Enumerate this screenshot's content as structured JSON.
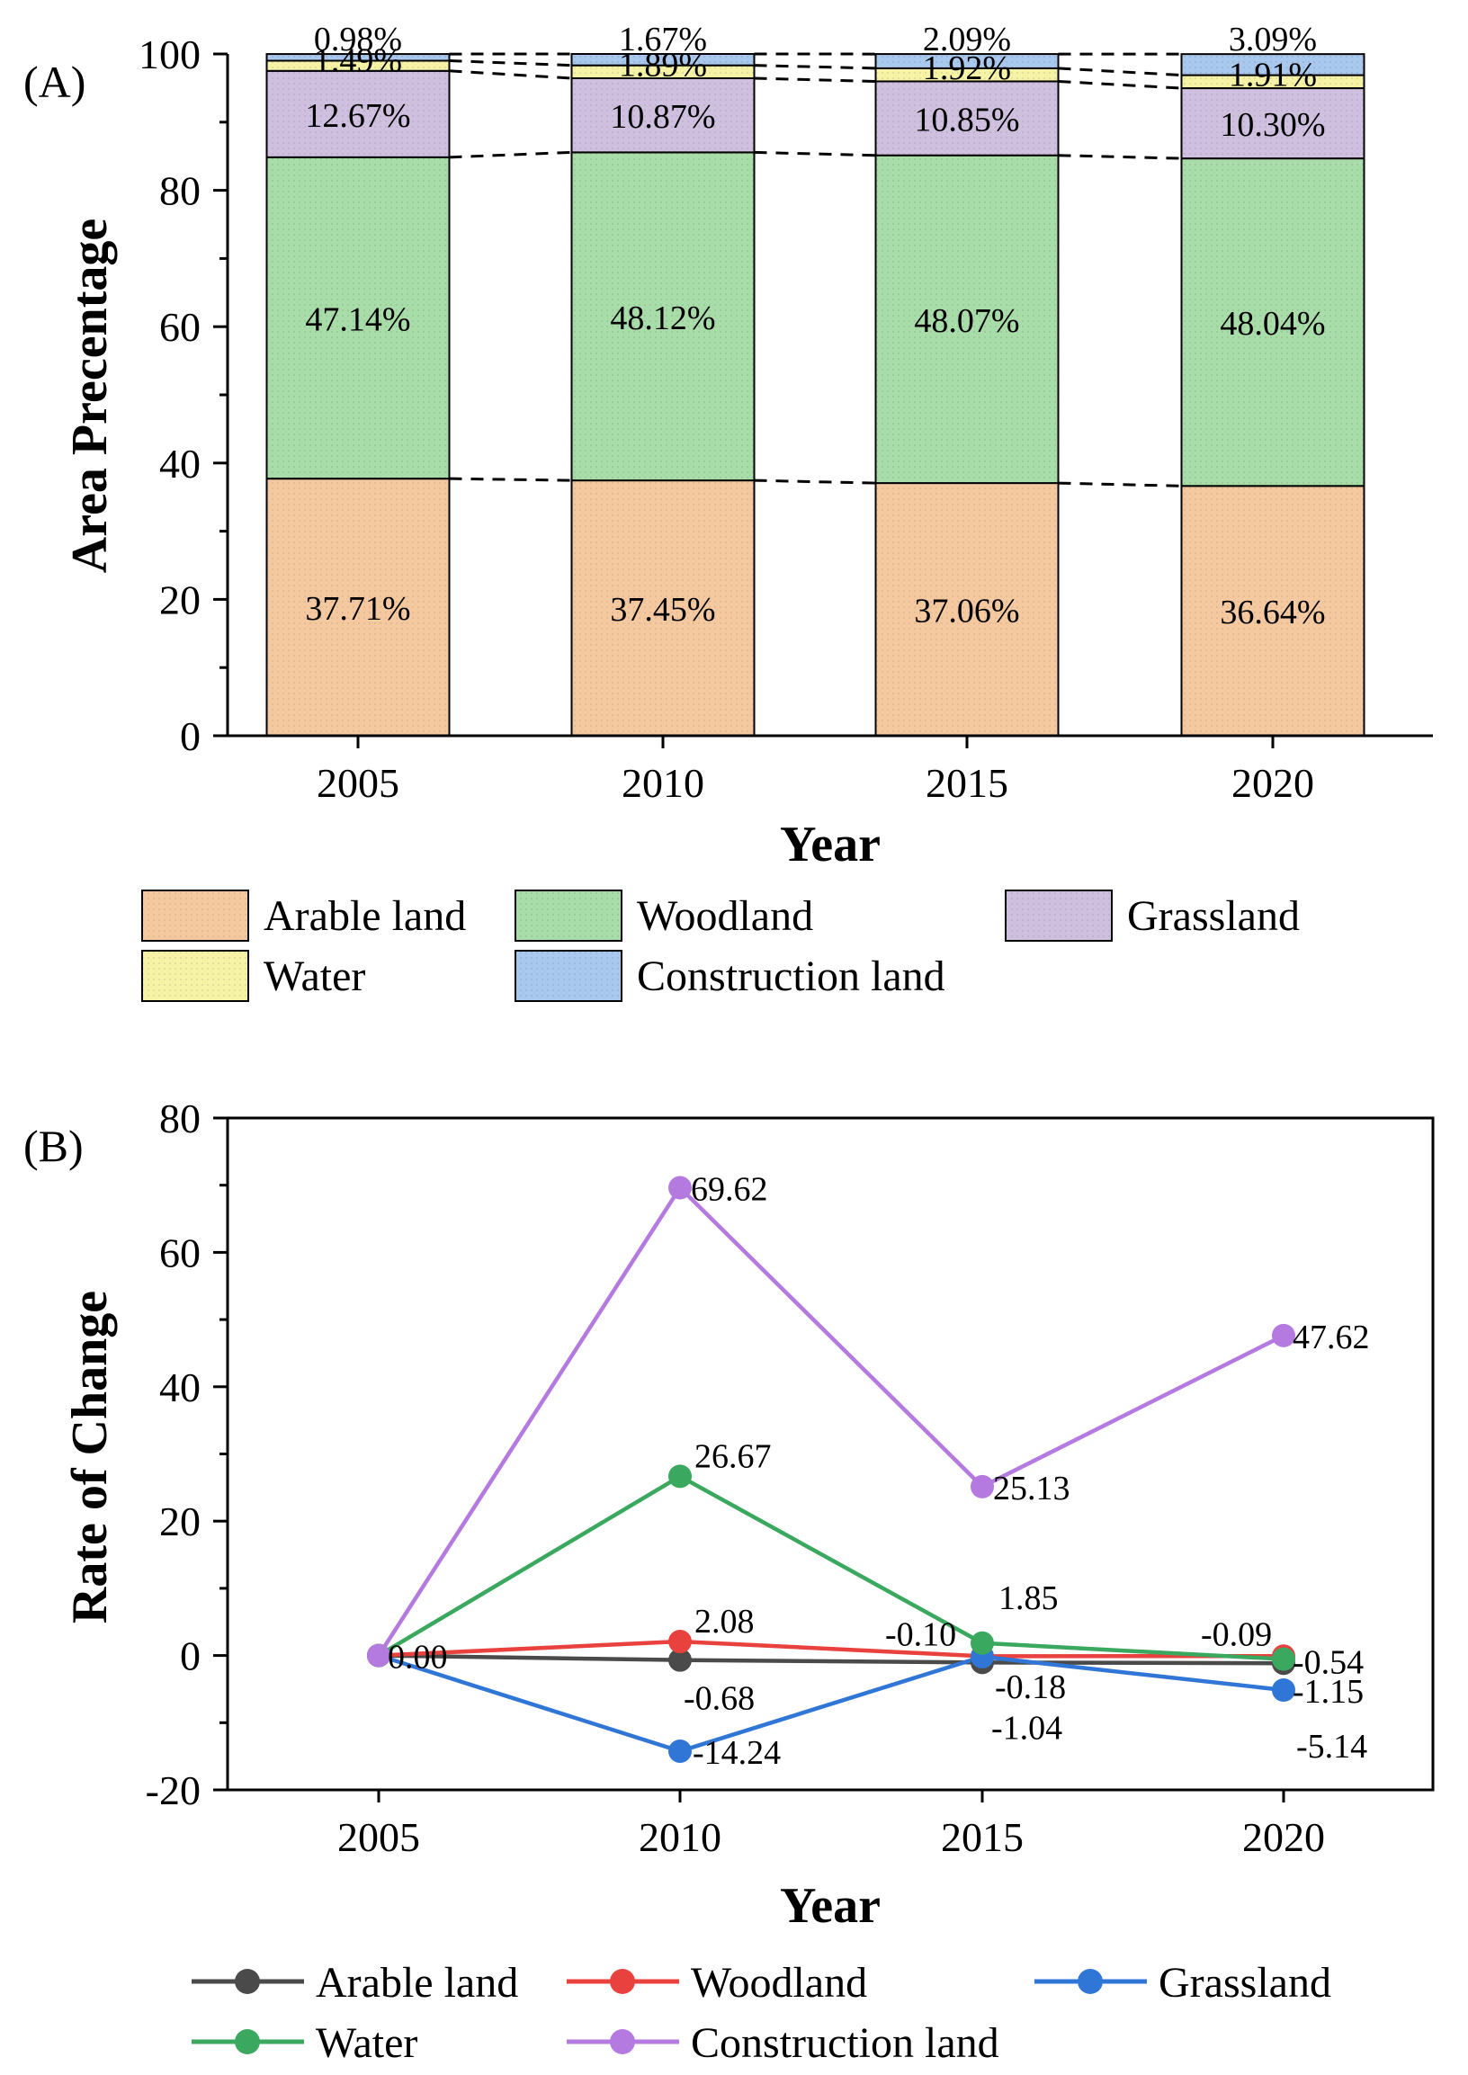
{
  "chart_data": [
    {
      "panel": "(A)",
      "type": "bar",
      "stacked": true,
      "title": "",
      "xlabel": "Year",
      "ylabel": "Area Precentage",
      "ylim": [
        0,
        100
      ],
      "yticks": [
        "0",
        "20",
        "40",
        "60",
        "80",
        "100"
      ],
      "categories": [
        "2005",
        "2010",
        "2015",
        "2020"
      ],
      "series": [
        {
          "name": "Arable land",
          "color": "#f5c9a0",
          "values": [
            37.71,
            37.45,
            37.06,
            36.64
          ],
          "labels": [
            "37.71%",
            "37.45%",
            "37.06%",
            "36.64%"
          ]
        },
        {
          "name": "Woodland",
          "color": "#a8dca8",
          "values": [
            47.14,
            48.12,
            48.07,
            48.04
          ],
          "labels": [
            "47.14%",
            "48.12%",
            "48.07%",
            "48.04%"
          ]
        },
        {
          "name": "Grassland",
          "color": "#cfc0e0",
          "values": [
            12.67,
            10.87,
            10.85,
            10.3
          ],
          "labels": [
            "12.67%",
            "10.87%",
            "10.85%",
            "10.30%"
          ]
        },
        {
          "name": "Water",
          "color": "#f6f2a6",
          "values": [
            1.49,
            1.89,
            1.92,
            1.91
          ],
          "labels": [
            "1.49%",
            "1.89%",
            "1.92%",
            "1.91%"
          ]
        },
        {
          "name": "Construction land",
          "color": "#a9c8ee",
          "values": [
            0.98,
            1.67,
            2.09,
            3.09
          ],
          "labels": [
            "0.98%",
            "1.67%",
            "2.09%",
            "3.09%"
          ]
        }
      ],
      "legend": [
        "Arable land",
        "Woodland",
        "Grassland",
        "Water",
        "Construction land"
      ],
      "legend_position": "bottom"
    },
    {
      "panel": "(B)",
      "type": "line",
      "title": "",
      "xlabel": "Year",
      "ylabel": "Rate of Change",
      "ylim": [
        -20,
        80
      ],
      "yticks": [
        "-20",
        "0",
        "20",
        "40",
        "60",
        "80"
      ],
      "categories": [
        "2005",
        "2010",
        "2015",
        "2020"
      ],
      "series": [
        {
          "name": "Arable land",
          "color": "#4a4a4a",
          "values": [
            0,
            -0.68,
            -1.04,
            -1.15
          ],
          "labels": [
            "0.00",
            "-0.68",
            "-1.04",
            "-1.15"
          ]
        },
        {
          "name": "Woodland",
          "color": "#e8413e",
          "values": [
            0,
            2.08,
            -0.1,
            -0.09
          ],
          "labels": [
            "",
            "2.08",
            "-0.10",
            "-0.09"
          ]
        },
        {
          "name": "Grassland",
          "color": "#2f76d6",
          "values": [
            0,
            -14.24,
            -0.18,
            -5.14
          ],
          "labels": [
            "",
            "-14.24",
            "-0.18",
            "-5.14"
          ]
        },
        {
          "name": "Water",
          "color": "#3aa85e",
          "values": [
            0,
            26.67,
            1.85,
            -0.54
          ],
          "labels": [
            "",
            "26.67",
            "1.85",
            "-0.54"
          ]
        },
        {
          "name": "Construction land",
          "color": "#b57ae0",
          "values": [
            0,
            69.62,
            25.13,
            47.62
          ],
          "labels": [
            "",
            "69.62",
            "25.13",
            "47.62"
          ]
        }
      ],
      "legend": [
        "Arable land",
        "Woodland",
        "Grassland",
        "Water",
        "Construction land"
      ],
      "legend_position": "bottom"
    }
  ]
}
